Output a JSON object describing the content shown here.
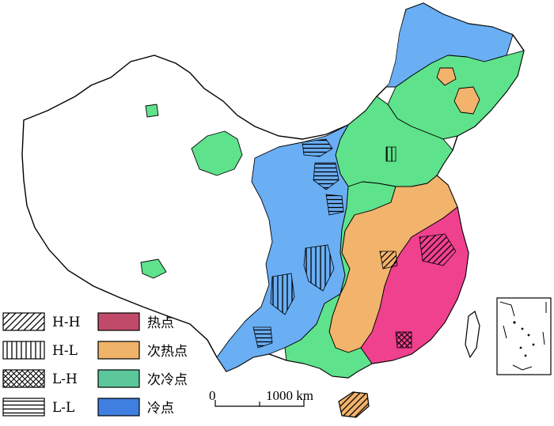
{
  "legend": {
    "patterns": [
      {
        "code": "H-H",
        "pattern": "diagonal-hatch"
      },
      {
        "code": "H-L",
        "pattern": "vertical-lines"
      },
      {
        "code": "L-H",
        "pattern": "cross-hatch"
      },
      {
        "code": "L-L",
        "pattern": "horizontal-lines"
      }
    ],
    "categories": [
      {
        "label": "热点",
        "color": "#c14a6b"
      },
      {
        "label": "次热点",
        "color": "#f0b36a"
      },
      {
        "label": "次冷点",
        "color": "#5cc79b"
      },
      {
        "label": "冷点",
        "color": "#3f7fe0"
      }
    ]
  },
  "scale_bar": {
    "start": "0",
    "end": "1000 km"
  },
  "map_colors": {
    "hot": "#f0418f",
    "sub_hot": "#f2b36c",
    "sub_cold": "#5fe28c",
    "cold": "#6aaef3",
    "outline": "#000000",
    "background": "#ffffff"
  }
}
